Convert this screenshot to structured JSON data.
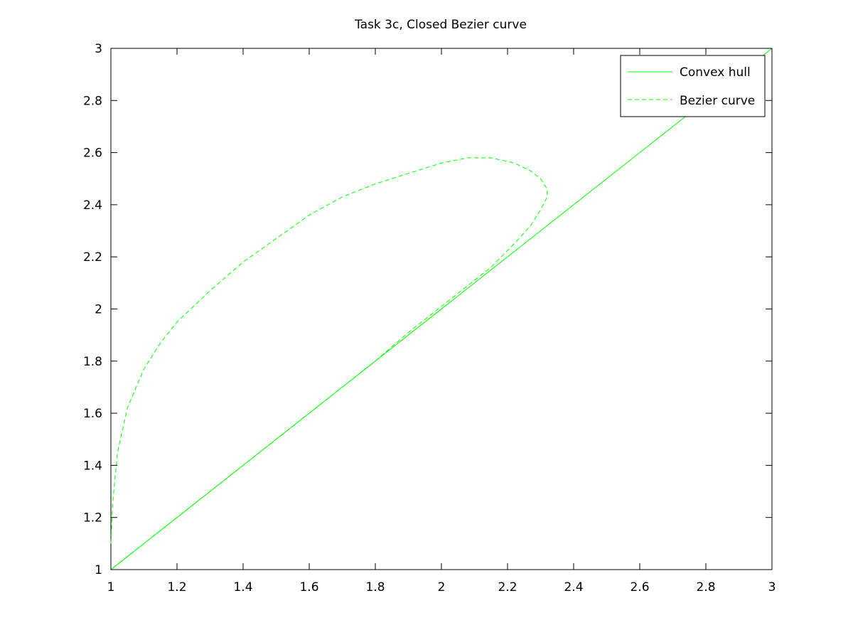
{
  "chart_data": {
    "type": "line",
    "title": "Task 3c, Closed Bezier curve",
    "xlabel": "",
    "ylabel": "",
    "xlim": [
      1,
      3
    ],
    "ylim": [
      1,
      3
    ],
    "x_ticks": [
      1,
      1.2,
      1.4,
      1.6,
      1.8,
      2,
      2.2,
      2.4,
      2.6,
      2.8,
      3
    ],
    "y_ticks": [
      1,
      1.2,
      1.4,
      1.6,
      1.8,
      2,
      2.2,
      2.4,
      2.6,
      2.8,
      3
    ],
    "x_tick_labels": [
      "1",
      "1.2",
      "1.4",
      "1.6",
      "1.8",
      "2",
      "2.2",
      "2.4",
      "2.6",
      "2.8",
      "3"
    ],
    "y_tick_labels": [
      "1",
      "1.2",
      "1.4",
      "1.6",
      "1.8",
      "2",
      "2.2",
      "2.4",
      "2.6",
      "2.8",
      "3"
    ],
    "grid": false,
    "legend_position": "top-right",
    "series": [
      {
        "name": "Convex hull",
        "style": "solid",
        "color": "#00ff00",
        "x": [
          1,
          3
        ],
        "y": [
          1,
          3
        ]
      },
      {
        "name": "Bezier curve",
        "style": "dashed",
        "color": "#00ff00",
        "x": [
          1.0,
          1.005,
          1.02,
          1.05,
          1.1,
          1.15,
          1.2,
          1.3,
          1.4,
          1.5,
          1.6,
          1.7,
          1.8,
          1.9,
          2.0,
          2.08,
          2.15,
          2.22,
          2.27,
          2.3,
          2.32,
          2.32,
          2.3,
          2.27,
          2.22,
          2.15,
          2.07,
          2.0,
          1.9,
          1.8,
          1.7,
          1.6,
          1.5,
          1.4,
          1.3,
          1.2,
          1.1,
          1.0
        ],
        "y": [
          1.1,
          1.25,
          1.45,
          1.62,
          1.77,
          1.87,
          1.95,
          2.07,
          2.18,
          2.27,
          2.36,
          2.43,
          2.48,
          2.52,
          2.56,
          2.58,
          2.58,
          2.56,
          2.53,
          2.5,
          2.46,
          2.43,
          2.38,
          2.32,
          2.25,
          2.16,
          2.08,
          2.01,
          1.91,
          1.8,
          1.7,
          1.6,
          1.5,
          1.4,
          1.3,
          1.2,
          1.1,
          1.0
        ]
      }
    ]
  }
}
